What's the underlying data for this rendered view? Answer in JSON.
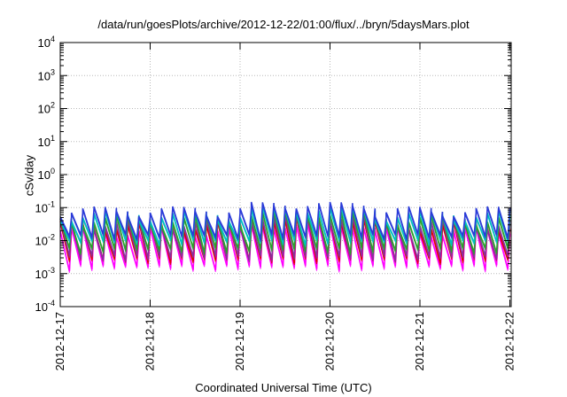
{
  "chart_data": {
    "type": "line",
    "title": "/data/run/goesPlots/archive/2012-12-22/01:00/flux/../bryn/5daysMars.plot",
    "xlabel": "Coordinated Universal Time (UTC)",
    "ylabel": "cSv/day",
    "yscale": "log",
    "ylim": [
      0.0001,
      10000
    ],
    "xlim": [
      "2012-12-17",
      "2012-12-22 01:00"
    ],
    "grid": true,
    "xticks": [
      "2012-12-17",
      "2012-12-18",
      "2012-12-19",
      "2012-12-20",
      "2012-12-21",
      "2012-12-22"
    ],
    "yticks": [
      {
        "base": "10",
        "exp": "-4"
      },
      {
        "base": "10",
        "exp": "-3"
      },
      {
        "base": "10",
        "exp": "-2"
      },
      {
        "base": "10",
        "exp": "-1"
      },
      {
        "base": "10",
        "exp": "0"
      },
      {
        "base": "10",
        "exp": "1"
      },
      {
        "base": "10",
        "exp": "2"
      },
      {
        "base": "10",
        "exp": "3"
      },
      {
        "base": "10",
        "exp": "4"
      }
    ],
    "colors": [
      "#e00000",
      "#8b2f9e",
      "#ff00ff",
      "#2a3bd8",
      "#00c0c0",
      "#2ca02c"
    ],
    "oscillations_per_day": 8,
    "series_levels": [
      {
        "color": "#ff00ff",
        "peak": 0.02,
        "trough": 0.0015
      },
      {
        "color": "#e00000",
        "peak": 0.03,
        "trough": 0.0025
      },
      {
        "color": "#8b2f9e",
        "peak": 0.035,
        "trough": 0.003
      },
      {
        "color": "#2ca02c",
        "peak": 0.045,
        "trough": 0.005
      },
      {
        "color": "#00c0c0",
        "peak": 0.06,
        "trough": 0.009
      },
      {
        "color": "#2a3bd8",
        "peak": 0.08,
        "trough": 0.013
      }
    ]
  }
}
